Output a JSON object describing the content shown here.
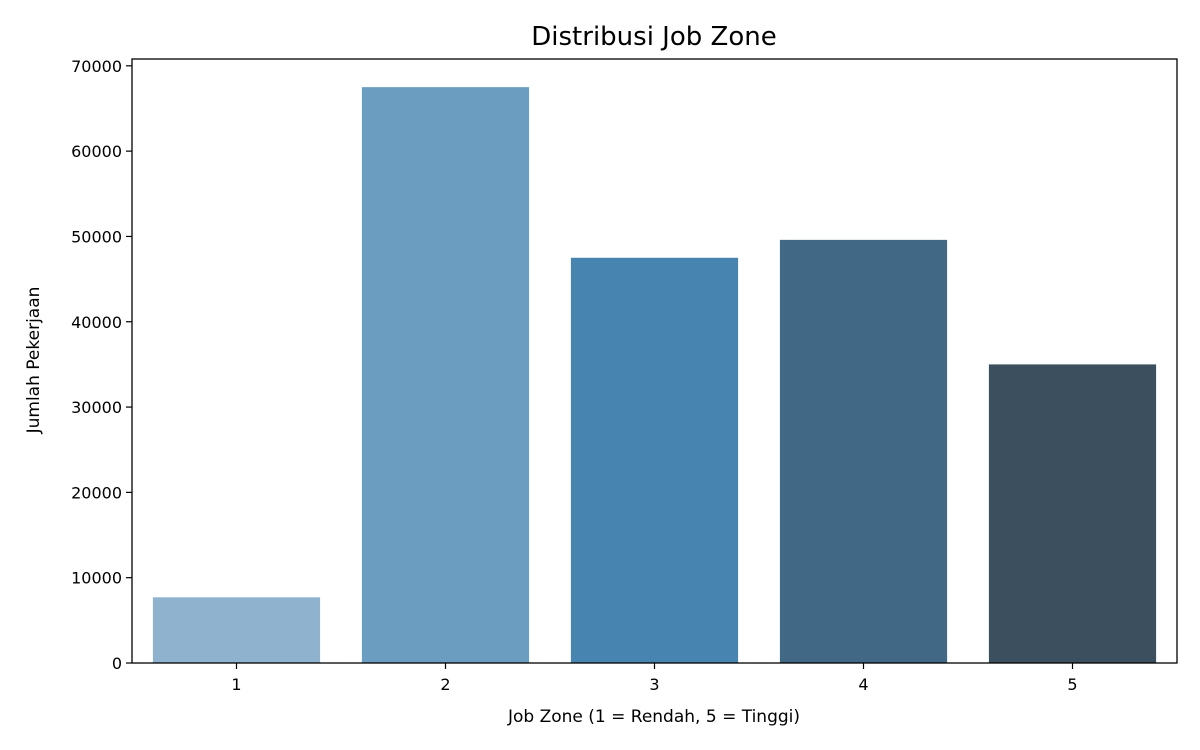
{
  "chart_data": {
    "type": "bar",
    "title": "Distribusi Job Zone",
    "xlabel": "Job Zone (1 = Rendah, 5 = Tinggi)",
    "ylabel": "Jumlah Pekerjaan",
    "categories": [
      "1",
      "2",
      "3",
      "4",
      "5"
    ],
    "values": [
      7700,
      67500,
      47500,
      49600,
      35000
    ],
    "colors": [
      "#8fb3cf",
      "#6a9dbf",
      "#4884b0",
      "#416885",
      "#3b4f5e"
    ],
    "ylim": [
      0,
      70800
    ],
    "yticks": [
      0,
      10000,
      20000,
      30000,
      40000,
      50000,
      60000,
      70000
    ],
    "ytick_labels": [
      "0",
      "10000",
      "20000",
      "30000",
      "40000",
      "50000",
      "60000",
      "70000"
    ],
    "grid": false,
    "legend": "none"
  }
}
